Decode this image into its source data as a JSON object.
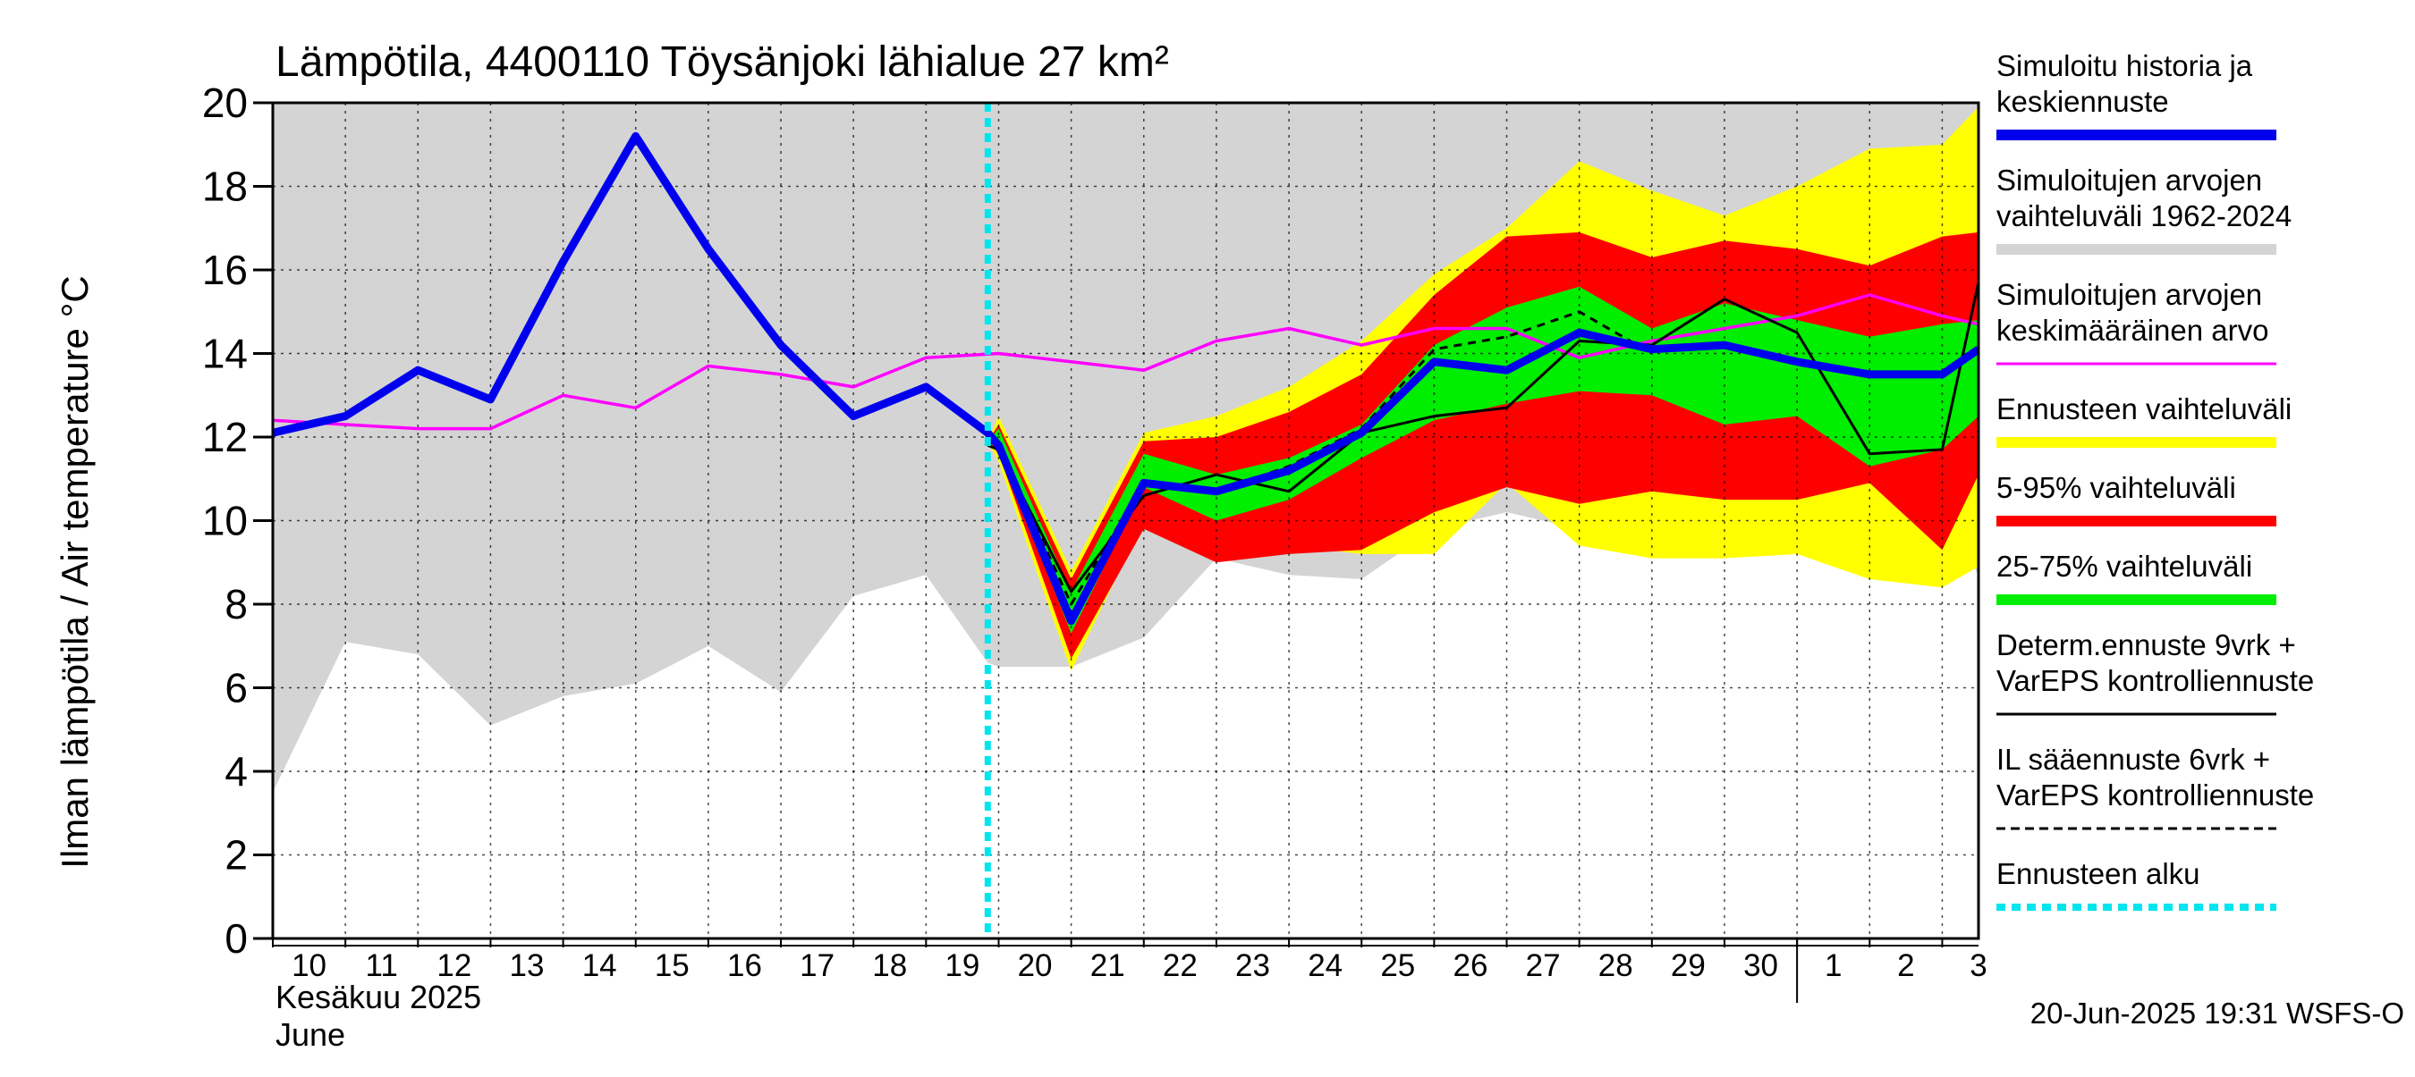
{
  "chart_data": {
    "type": "area",
    "title": "Lämpötila, 4400110 Töysänjoki lähialue 27 km²",
    "ylabel": "Ilman lämpötila / Air temperature   °C",
    "ylim": [
      0,
      20
    ],
    "yticks": [
      0,
      2,
      4,
      6,
      8,
      10,
      12,
      14,
      16,
      18,
      20
    ],
    "x_tick_labels": [
      "10",
      "11",
      "12",
      "13",
      "14",
      "15",
      "16",
      "17",
      "18",
      "19",
      "20",
      "21",
      "22",
      "23",
      "24",
      "25",
      "26",
      "27",
      "28",
      "29",
      "30",
      "1",
      "2",
      "3"
    ],
    "month_label_fi": "Kesäkuu   2025",
    "month_label_en": "June",
    "forecast_start_day": 19.85,
    "grid": true,
    "legend_position": "right",
    "timestamp": "20-Jun-2025 19:31 WSFS-O",
    "colors": {
      "history_range": "#d4d4d4",
      "forecast_range": "#ffff00",
      "range_5_95": "#ff0000",
      "range_25_75": "#00ee00",
      "history_mean_line": "#0000ee",
      "longterm_mean": "#ff00ff",
      "deterministic": "#000000",
      "forecast_start": "#00e5ee"
    },
    "legend": [
      {
        "text": [
          "Simuloitu historia ja",
          "keskiennuste"
        ],
        "color": "#0000ee",
        "style": "thick"
      },
      {
        "text": [
          "Simuloitujen arvojen",
          "vaihteluväli 1962-2024"
        ],
        "color": "#d4d4d4",
        "style": "thick"
      },
      {
        "text": [
          "Simuloitujen arvojen",
          "keskimääräinen arvo"
        ],
        "color": "#ff00ff",
        "style": "thin"
      },
      {
        "text": [
          "Ennusteen vaihteluväli"
        ],
        "color": "#ffff00",
        "style": "thick"
      },
      {
        "text": [
          "5-95% vaihteluväli"
        ],
        "color": "#ff0000",
        "style": "thick"
      },
      {
        "text": [
          "25-75% vaihteluväli"
        ],
        "color": "#00ee00",
        "style": "thick"
      },
      {
        "text": [
          "Determ.ennuste 9vrk +",
          "VarEPS kontrolliennuste"
        ],
        "color": "#000000",
        "style": "thin"
      },
      {
        "text": [
          "IL sääennuste 6vrk  +",
          "  VarEPS kontrolliennuste"
        ],
        "color": "#000000",
        "style": "dashed"
      },
      {
        "text": [
          "Ennusteen alku"
        ],
        "color": "#00e5ee",
        "style": "dotted"
      }
    ],
    "series": {
      "history_range": {
        "x": [
          10,
          11,
          12,
          13,
          14,
          15,
          16,
          17,
          18,
          19,
          19.85,
          20,
          21,
          22,
          23,
          24,
          25,
          26,
          27,
          28,
          29,
          30,
          31,
          32,
          33,
          33.5
        ],
        "upper": [
          20,
          20,
          20,
          20,
          20,
          20,
          20,
          20,
          20,
          20,
          20,
          20,
          20,
          20,
          20,
          20,
          20,
          20,
          20,
          20,
          20,
          20,
          20,
          20,
          20,
          20
        ],
        "lower": [
          3.5,
          7.1,
          6.8,
          5.1,
          5.8,
          6.1,
          7.0,
          5.9,
          8.2,
          8.7,
          6.6,
          6.5,
          6.5,
          7.2,
          9.1,
          8.7,
          8.6,
          9.8,
          10.2,
          9.8,
          10.5,
          9.5,
          9.3,
          8.6,
          10.2,
          8.7
        ]
      },
      "forecast_range": {
        "x": [
          19.85,
          20,
          21,
          22,
          23,
          24,
          25,
          26,
          27,
          28,
          29,
          30,
          31,
          32,
          33,
          33.5
        ],
        "upper": [
          11.9,
          12.5,
          8.8,
          12.1,
          12.5,
          13.2,
          14.3,
          15.9,
          17.0,
          18.6,
          17.9,
          17.3,
          18.0,
          18.9,
          19.0,
          19.9
        ],
        "lower": [
          11.9,
          11.4,
          6.4,
          10.0,
          9.0,
          9.4,
          9.2,
          9.2,
          10.9,
          9.4,
          9.1,
          9.1,
          9.2,
          8.6,
          8.4,
          8.9
        ]
      },
      "range_5_95": {
        "x": [
          19.85,
          20,
          21,
          22,
          23,
          24,
          25,
          26,
          27,
          28,
          29,
          30,
          31,
          32,
          33,
          33.5
        ],
        "upper": [
          11.9,
          12.3,
          8.6,
          11.9,
          12.0,
          12.6,
          13.5,
          15.4,
          16.8,
          16.9,
          16.3,
          16.7,
          16.5,
          16.1,
          16.8,
          16.9
        ],
        "lower": [
          11.9,
          11.6,
          6.7,
          9.8,
          9.0,
          9.2,
          9.3,
          10.2,
          10.8,
          10.4,
          10.7,
          10.5,
          10.5,
          10.9,
          9.3,
          11.1
        ]
      },
      "range_25_75": {
        "x": [
          19.85,
          20,
          21,
          22,
          23,
          24,
          25,
          26,
          27,
          28,
          29,
          30,
          31,
          32,
          33,
          33.5
        ],
        "upper": [
          11.9,
          12.2,
          8.3,
          11.6,
          11.1,
          11.5,
          12.3,
          14.2,
          15.1,
          15.6,
          14.6,
          15.2,
          14.8,
          14.4,
          14.7,
          14.8
        ],
        "lower": [
          11.9,
          11.7,
          7.3,
          10.8,
          10.0,
          10.5,
          11.5,
          12.4,
          12.8,
          13.1,
          13.0,
          12.3,
          12.5,
          11.3,
          11.7,
          12.5
        ]
      },
      "simulated_history_mean": {
        "x": [
          10,
          11,
          12,
          13,
          14,
          15,
          16,
          17,
          18,
          19,
          19.85,
          20,
          21,
          22,
          23,
          24,
          25,
          26,
          27,
          28,
          29,
          30,
          31,
          32,
          33,
          33.5
        ],
        "y": [
          12.1,
          12.5,
          13.6,
          12.9,
          16.2,
          19.2,
          16.5,
          14.2,
          12.5,
          13.2,
          12.1,
          11.8,
          7.6,
          10.9,
          10.7,
          11.2,
          12.1,
          13.8,
          13.6,
          14.5,
          14.1,
          14.2,
          13.8,
          13.5,
          13.5,
          14.1
        ]
      },
      "longterm_mean": {
        "x": [
          10,
          11,
          12,
          13,
          14,
          15,
          16,
          17,
          18,
          19,
          20,
          21,
          22,
          23,
          24,
          25,
          26,
          27,
          28,
          29,
          30,
          31,
          32,
          33,
          33.5
        ],
        "y": [
          12.4,
          12.3,
          12.2,
          12.2,
          13.0,
          12.7,
          13.7,
          13.5,
          13.2,
          13.9,
          14.0,
          13.8,
          13.6,
          14.3,
          14.6,
          14.2,
          14.6,
          14.6,
          13.9,
          14.3,
          14.6,
          14.9,
          15.4,
          14.9,
          14.7
        ]
      },
      "deterministic": {
        "x": [
          19.85,
          20,
          21,
          22,
          23,
          24,
          25,
          26,
          27,
          28,
          29,
          30,
          31,
          32,
          33,
          33.5
        ],
        "y": [
          11.8,
          11.7,
          8.3,
          10.6,
          11.1,
          10.7,
          12.1,
          12.5,
          12.7,
          14.3,
          14.2,
          15.3,
          14.5,
          11.6,
          11.7,
          15.7
        ]
      },
      "il_forecast": {
        "x": [
          19.85,
          20,
          21,
          22,
          23,
          24,
          25,
          26,
          27,
          28,
          29
        ],
        "y": [
          11.9,
          11.8,
          8.0,
          10.9,
          10.7,
          11.3,
          12.2,
          14.1,
          14.4,
          15.0,
          14.0
        ]
      }
    }
  }
}
